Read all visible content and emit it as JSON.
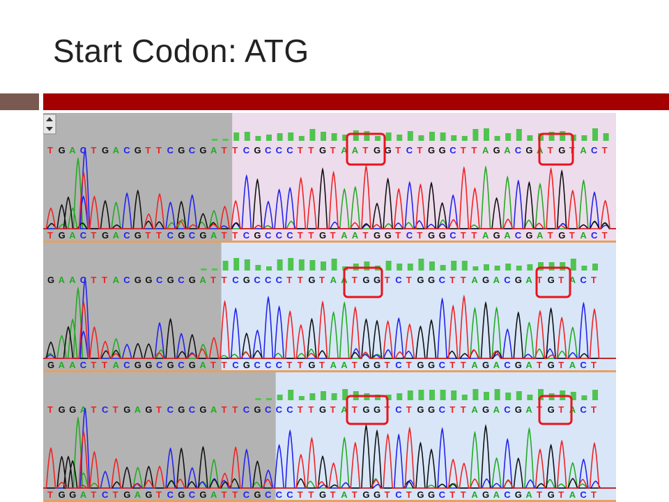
{
  "slide": {
    "title": "Start Codon: ATG"
  },
  "colors": {
    "A": "#22aa22",
    "C": "#2222ee",
    "G": "#111111",
    "T": "#ee2222",
    "trimmed_bg": "#b3b3b3",
    "panel1_bg": "#eddcec",
    "panel_bg": "#d8e6f8",
    "highlight": "#e8141c",
    "accent_bar": "#a50000",
    "side_bar": "#7a5a50"
  },
  "panels": [
    {
      "sequence": "TGACTGACGTTCGCGATTCGCCCTTGTAATGGTCTGGCTTAGACGATGTACT",
      "trimmed_bases": 17,
      "codon_boxes": [
        "TAAT G (first ATG)",
        "GATG (second ATG)"
      ]
    },
    {
      "sequence": "GAACTTACGGCGCGATTCGCCCTTGTAATGGTCTGGCTTAGACGATGTACT",
      "trimmed_bases": 16,
      "codon_boxes": [
        "TAAT G (first ATG)",
        "GATG (second ATG)"
      ]
    },
    {
      "sequence": "TGGATCTGAGTCGCGATTCGCCCTTGTATGGTCTGGCTTAGACGATGTACT",
      "trimmed_bases": 21,
      "codon_boxes": [
        "TAT G (first ATG)",
        "GATG (second ATG)"
      ]
    }
  ]
}
